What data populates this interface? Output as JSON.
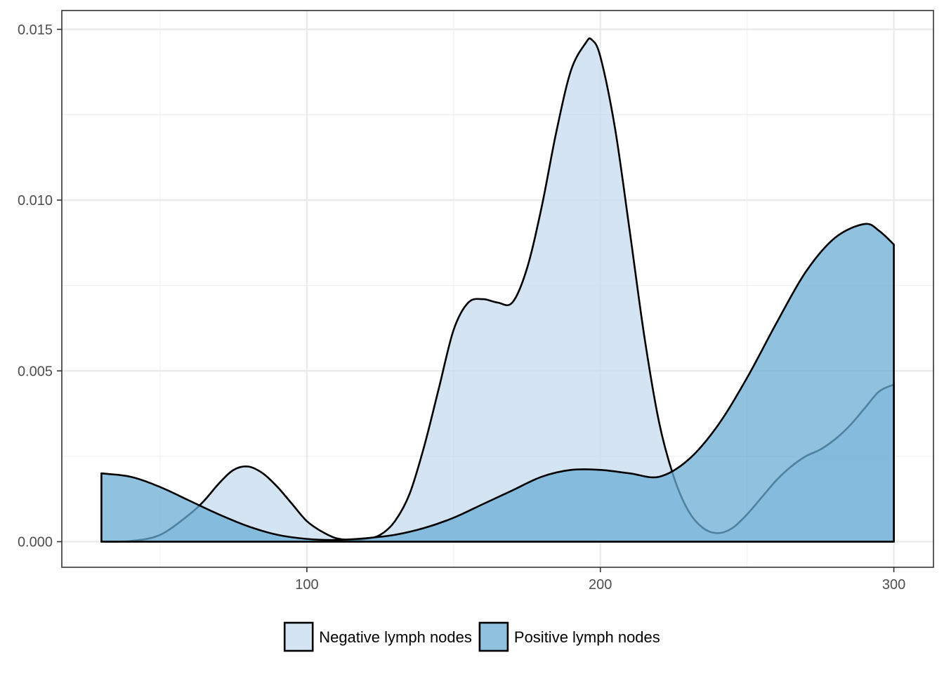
{
  "chart_data": {
    "type": "area",
    "subtype": "density",
    "title": "",
    "xlabel": "",
    "ylabel": "",
    "xlim": [
      16.5,
      313.5
    ],
    "ylim": [
      -0.00075,
      0.01555
    ],
    "x_ticks": [
      100,
      200,
      300
    ],
    "x_tick_labels": [
      "100",
      "200",
      "300"
    ],
    "x_minor_ticks": [
      50,
      150,
      250
    ],
    "y_ticks": [
      0.0,
      0.005,
      0.01,
      0.015
    ],
    "y_tick_labels": [
      "0.000",
      "0.005",
      "0.010",
      "0.015"
    ],
    "y_minor_ticks": [
      0.0025,
      0.0075,
      0.0125
    ],
    "grid": true,
    "legend_position": "bottom",
    "series": [
      {
        "name": "Negative lymph nodes",
        "color": "#c6dbef",
        "opacity": 0.75,
        "x": [
          30,
          40,
          50,
          60,
          65,
          70,
          75,
          80,
          85,
          90,
          95,
          100,
          105,
          110,
          115,
          120,
          125,
          130,
          135,
          140,
          145,
          150,
          155,
          160,
          165,
          170,
          175,
          180,
          185,
          190,
          195,
          197,
          200,
          205,
          210,
          215,
          220,
          225,
          230,
          235,
          240,
          245,
          250,
          255,
          260,
          265,
          270,
          275,
          280,
          285,
          290,
          295,
          300
        ],
        "y": [
          0.0,
          2e-05,
          0.0002,
          0.0008,
          0.0012,
          0.0017,
          0.0021,
          0.0022,
          0.002,
          0.0016,
          0.0011,
          0.0006,
          0.0003,
          0.0001,
          5e-05,
          8e-05,
          0.0002,
          0.0006,
          0.0014,
          0.0028,
          0.0045,
          0.0062,
          0.007,
          0.0071,
          0.007,
          0.007,
          0.008,
          0.0098,
          0.012,
          0.0138,
          0.0146,
          0.0147,
          0.0142,
          0.0121,
          0.0091,
          0.006,
          0.0035,
          0.0019,
          0.0009,
          0.0004,
          0.00025,
          0.0004,
          0.0008,
          0.0013,
          0.0018,
          0.0022,
          0.0025,
          0.0027,
          0.003,
          0.0034,
          0.0039,
          0.0044,
          0.0046
        ]
      },
      {
        "name": "Positive lymph nodes",
        "color": "#6baed6",
        "opacity": 0.75,
        "x": [
          30,
          40,
          50,
          60,
          70,
          80,
          90,
          100,
          110,
          120,
          130,
          140,
          150,
          160,
          170,
          180,
          190,
          200,
          210,
          220,
          230,
          240,
          250,
          260,
          270,
          280,
          290,
          295,
          300
        ],
        "y": [
          0.002,
          0.0019,
          0.0016,
          0.0012,
          0.0008,
          0.00045,
          0.0002,
          8e-05,
          5e-05,
          0.0001,
          0.0002,
          0.0004,
          0.0007,
          0.0011,
          0.0015,
          0.0019,
          0.0021,
          0.0021,
          0.002,
          0.0019,
          0.0024,
          0.0034,
          0.0048,
          0.0064,
          0.0079,
          0.0089,
          0.0093,
          0.0091,
          0.0087
        ]
      }
    ]
  }
}
